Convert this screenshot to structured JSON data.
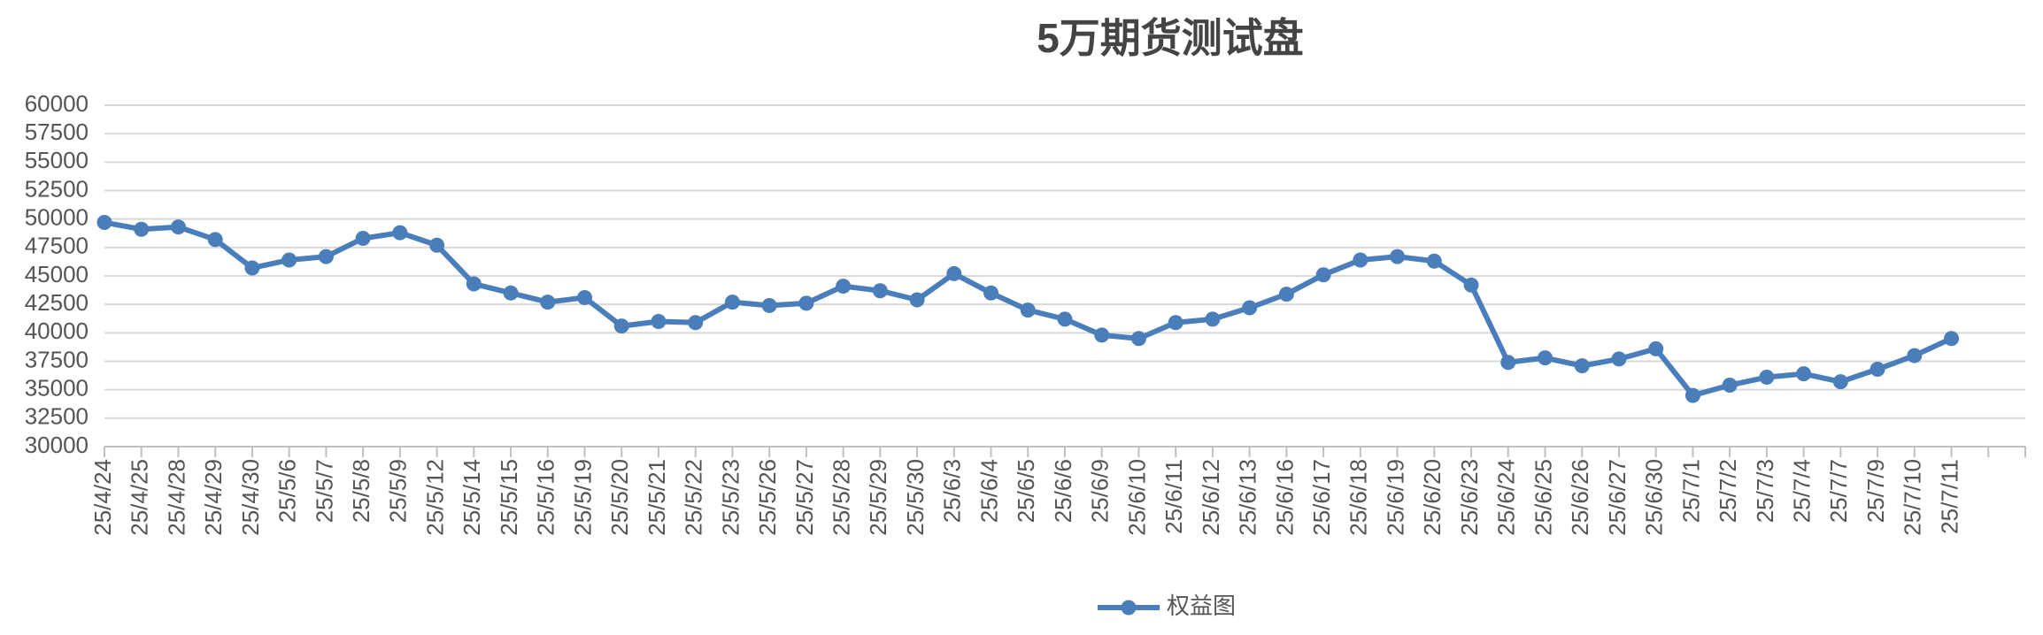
{
  "chart_data": {
    "type": "line",
    "title": "5万期货测试盘",
    "categories": [
      "25/4/24",
      "25/4/25",
      "25/4/28",
      "25/4/29",
      "25/4/30",
      "25/5/6",
      "25/5/7",
      "25/5/8",
      "25/5/9",
      "25/5/12",
      "25/5/14",
      "25/5/15",
      "25/5/16",
      "25/5/19",
      "25/5/20",
      "25/5/21",
      "25/5/22",
      "25/5/23",
      "25/5/26",
      "25/5/27",
      "25/5/28",
      "25/5/29",
      "25/5/30",
      "25/6/3",
      "25/6/4",
      "25/6/5",
      "25/6/6",
      "25/6/9",
      "25/6/10",
      "25/6/11",
      "25/6/12",
      "25/6/13",
      "25/6/16",
      "25/6/17",
      "25/6/18",
      "25/6/19",
      "25/6/20",
      "25/6/23",
      "25/6/24",
      "25/6/25",
      "25/6/26",
      "25/6/27",
      "25/6/30",
      "25/7/1",
      "25/7/2",
      "25/7/3",
      "25/7/4",
      "25/7/7",
      "25/7/9",
      "25/7/10",
      "25/7/11",
      null,
      null
    ],
    "series": [
      {
        "name": "权益图",
        "color": "#4a7ebb",
        "values": [
          49700,
          49100,
          49300,
          48200,
          45700,
          46400,
          46700,
          48300,
          48800,
          47700,
          44300,
          43500,
          42700,
          43100,
          40600,
          41000,
          40900,
          42700,
          42400,
          42600,
          44100,
          43700,
          42900,
          45200,
          43500,
          42000,
          41200,
          39800,
          39500,
          40900,
          41200,
          42200,
          43400,
          45100,
          46400,
          46700,
          46300,
          44200,
          37400,
          37800,
          37100,
          37700,
          38600,
          34500,
          35400,
          36100,
          36400,
          35700,
          36800,
          38000,
          39500,
          null,
          null
        ]
      }
    ],
    "ylim": [
      30000,
      60000
    ],
    "yticks": [
      30000,
      32500,
      35000,
      37500,
      40000,
      42500,
      45000,
      47500,
      50000,
      52500,
      55000,
      57500,
      60000
    ],
    "grid": true,
    "legend": "bottom"
  }
}
